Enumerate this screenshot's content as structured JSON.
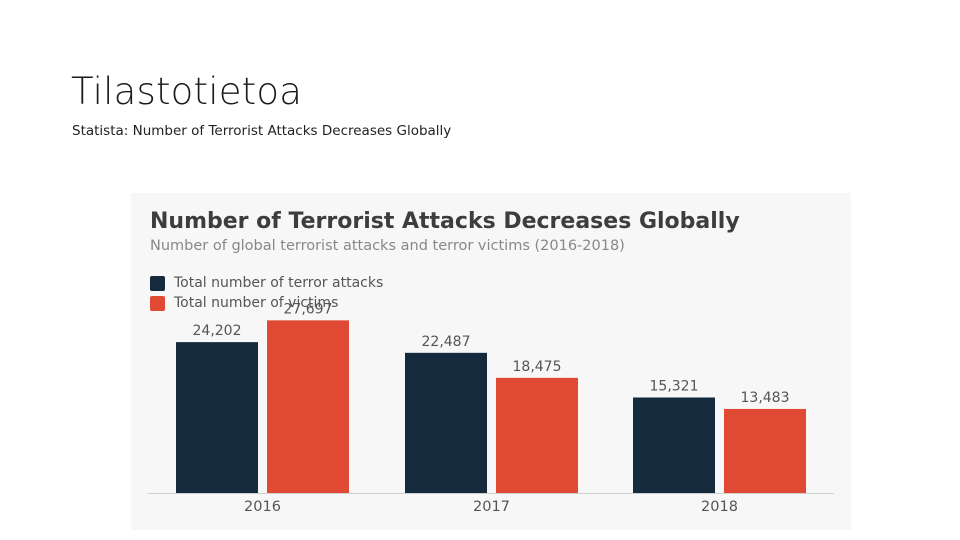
{
  "slide": {
    "title": "Tilastotietoa",
    "subtitle": "Statista: Number of Terrorist Attacks Decreases Globally"
  },
  "chart_data": {
    "type": "bar",
    "title": "Number of Terrorist Attacks Decreases Globally",
    "subtitle": "Number of global terrorist attacks and terror victims (2016-2018)",
    "categories": [
      "2016",
      "2017",
      "2018"
    ],
    "series": [
      {
        "name": "Total number of terror attacks",
        "color": "#162a3e",
        "values": [
          24202,
          22487,
          15321
        ],
        "labels": [
          "24,202",
          "22,487",
          "15,321"
        ]
      },
      {
        "name": "Total number of victims",
        "color": "#e04934",
        "values": [
          27697,
          18475,
          13483
        ],
        "labels": [
          "27,697",
          "18,475",
          "13,483"
        ]
      }
    ],
    "ylim": [
      0,
      30000
    ],
    "grid": false,
    "legend_position": "top-left",
    "xlabel": "",
    "ylabel": ""
  }
}
